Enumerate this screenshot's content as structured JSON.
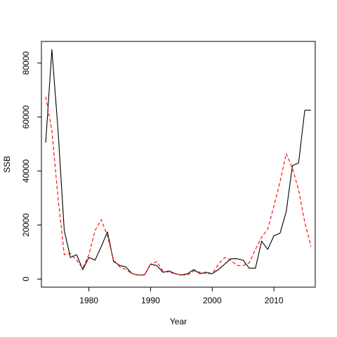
{
  "chart_data": {
    "type": "line",
    "title": "",
    "xlabel": "Year",
    "ylabel": "SSB",
    "xlim": [
      1972.3,
      2016.7
    ],
    "ylim": [
      -3000,
      88000
    ],
    "x_ticks": [
      1980,
      1990,
      2000,
      2010
    ],
    "y_ticks": [
      0,
      20000,
      40000,
      60000,
      80000
    ],
    "grid": false,
    "legend": "none",
    "series": [
      {
        "style": "solid",
        "color": "#000000",
        "x": [
          1973,
          1974,
          1975,
          1976,
          1977,
          1978,
          1979,
          1980,
          1981,
          1982,
          1983,
          1984,
          1985,
          1986,
          1987,
          1988,
          1989,
          1990,
          1991,
          1992,
          1993,
          1994,
          1995,
          1996,
          1997,
          1998,
          1999,
          2000,
          2001,
          2002,
          2003,
          2004,
          2005,
          2006,
          2007,
          2008,
          2009,
          2010,
          2011,
          2012,
          2013,
          2014,
          2015,
          2016
        ],
        "y": [
          50500,
          85000,
          55000,
          18000,
          8000,
          9000,
          3500,
          8000,
          7000,
          12000,
          17500,
          6500,
          5000,
          4500,
          2000,
          1500,
          1500,
          5500,
          5000,
          2500,
          3000,
          2000,
          1500,
          2000,
          3500,
          2000,
          2500,
          2000,
          3500,
          5500,
          7500,
          7500,
          7000,
          4000,
          4000,
          14000,
          11000,
          16000,
          17000,
          25000,
          42000,
          43000,
          62500,
          62500
        ]
      },
      {
        "style": "dashed",
        "color": "#ff0000",
        "x": [
          1973,
          1974,
          1975,
          1976,
          1977,
          1978,
          1979,
          1980,
          1981,
          1982,
          1983,
          1984,
          1985,
          1986,
          1987,
          1988,
          1989,
          1990,
          1991,
          1992,
          1993,
          1994,
          1995,
          1996,
          1997,
          1998,
          1999,
          2000,
          2001,
          2002,
          2003,
          2004,
          2005,
          2006,
          2007,
          2008,
          2009,
          2010,
          2011,
          2012,
          2013,
          2014,
          2015,
          2016
        ],
        "y": [
          67500,
          55000,
          30000,
          9000,
          9500,
          7000,
          4000,
          9000,
          18000,
          22000,
          16000,
          7000,
          4500,
          3500,
          2000,
          1500,
          1500,
          5500,
          6500,
          3000,
          2500,
          2000,
          1500,
          1500,
          3000,
          2500,
          2000,
          2000,
          5500,
          8000,
          7000,
          5000,
          5000,
          6000,
          11000,
          15500,
          18500,
          27000,
          36000,
          46500,
          41000,
          33000,
          21000,
          12000
        ]
      }
    ]
  }
}
